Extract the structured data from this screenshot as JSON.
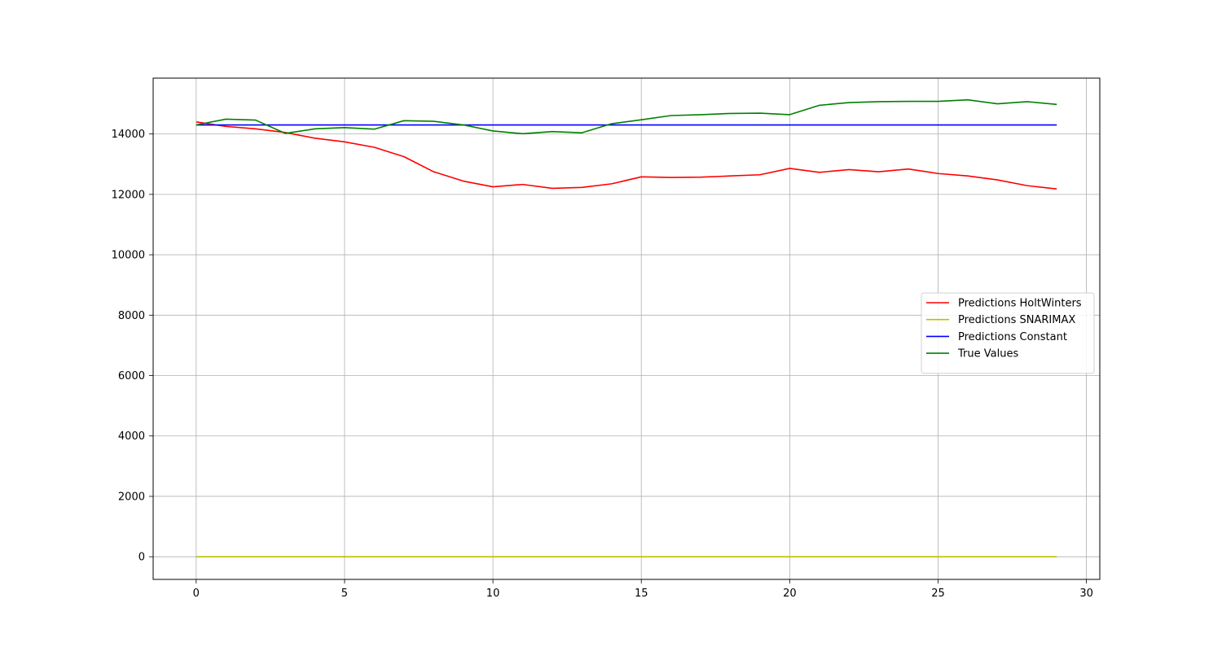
{
  "chart_data": {
    "type": "line",
    "title": "",
    "xlabel": "",
    "ylabel": "",
    "xlim": [
      -1.45,
      30.45
    ],
    "ylim": [
      -750,
      15850
    ],
    "xticks": [
      0,
      5,
      10,
      15,
      20,
      25,
      30
    ],
    "yticks": [
      0,
      2000,
      4000,
      6000,
      8000,
      10000,
      12000,
      14000
    ],
    "grid": true,
    "legend_position": "center-right",
    "x": [
      0,
      1,
      2,
      3,
      4,
      5,
      6,
      7,
      8,
      9,
      10,
      11,
      12,
      13,
      14,
      15,
      16,
      17,
      18,
      19,
      20,
      21,
      22,
      23,
      24,
      25,
      26,
      27,
      28,
      29
    ],
    "series": [
      {
        "name": "Predictions HoltWinters",
        "color": "#ff0000",
        "values": [
          14400,
          14250,
          14170,
          14050,
          13860,
          13740,
          13560,
          13250,
          12750,
          12440,
          12250,
          12330,
          12200,
          12230,
          12350,
          12580,
          12560,
          12570,
          12610,
          12650,
          12860,
          12730,
          12820,
          12750,
          12840,
          12690,
          12610,
          12480,
          12290,
          12180
        ]
      },
      {
        "name": "Predictions SNARIMAX",
        "color": "#bfbf00",
        "values": [
          0,
          0,
          0,
          0,
          0,
          0,
          0,
          0,
          0,
          0,
          0,
          0,
          0,
          0,
          0,
          0,
          0,
          0,
          0,
          0,
          0,
          0,
          0,
          0,
          0,
          0,
          0,
          0,
          0,
          0
        ]
      },
      {
        "name": "Predictions Constant",
        "color": "#0000ff",
        "values": [
          14300,
          14300,
          14300,
          14300,
          14300,
          14300,
          14300,
          14300,
          14300,
          14300,
          14300,
          14300,
          14300,
          14300,
          14300,
          14300,
          14300,
          14300,
          14300,
          14300,
          14300,
          14300,
          14300,
          14300,
          14300,
          14300,
          14300,
          14300,
          14300,
          14300
        ]
      },
      {
        "name": "True Values",
        "color": "#008000",
        "values": [
          14300,
          14490,
          14460,
          14020,
          14170,
          14210,
          14160,
          14440,
          14420,
          14300,
          14100,
          14010,
          14080,
          14040,
          14340,
          14470,
          14610,
          14640,
          14680,
          14690,
          14640,
          14950,
          15040,
          15070,
          15080,
          15080,
          15130,
          15000,
          15070,
          14980
        ]
      }
    ]
  }
}
